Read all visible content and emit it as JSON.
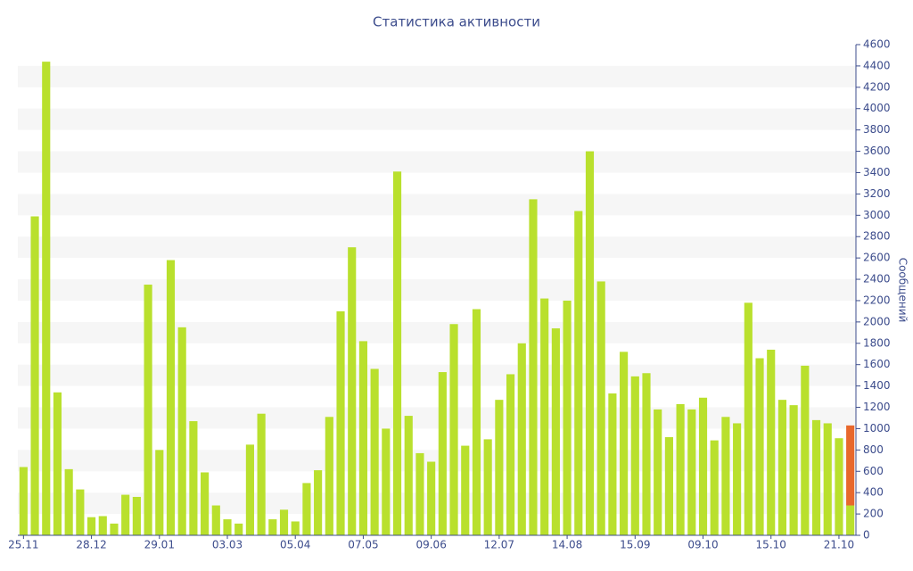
{
  "chart_data": {
    "type": "bar",
    "stacked": true,
    "title": "Статистика активности",
    "y_label": "Сообщений",
    "categories": [
      "25.11",
      null,
      null,
      null,
      null,
      null,
      "28.12",
      null,
      null,
      null,
      null,
      null,
      "29.01",
      null,
      null,
      null,
      null,
      null,
      "03.03",
      null,
      null,
      null,
      null,
      null,
      "05.04",
      null,
      null,
      null,
      null,
      null,
      "07.05",
      null,
      null,
      null,
      null,
      null,
      "09.06",
      null,
      null,
      null,
      null,
      null,
      "12.07",
      null,
      null,
      null,
      null,
      null,
      "14.08",
      null,
      null,
      null,
      null,
      null,
      "15.09",
      null,
      null,
      null,
      null,
      null,
      "09.10",
      null,
      null,
      null,
      null,
      null,
      "15.10",
      null,
      null,
      null,
      null,
      null,
      "21.10",
      null
    ],
    "series": [
      {
        "color": "#b9e02d",
        "values": [
          640,
          2990,
          4440,
          1340,
          620,
          430,
          170,
          180,
          110,
          380,
          360,
          2350,
          800,
          2580,
          1950,
          1070,
          590,
          280,
          150,
          110,
          850,
          1140,
          150,
          240,
          130,
          490,
          610,
          1110,
          2100,
          2700,
          1820,
          1560,
          1000,
          3410,
          1120,
          770,
          690,
          1530,
          1980,
          840,
          2120,
          900,
          1270,
          1510,
          1800,
          3150,
          2220,
          1940,
          2200,
          3040,
          3600,
          2380,
          1330,
          1720,
          1490,
          1520,
          1180,
          920,
          1230,
          1180,
          1290,
          890,
          1110,
          1050,
          2180,
          1660,
          1740,
          1270,
          1220,
          1590,
          1080,
          1050,
          910,
          280
        ]
      },
      {
        "color": "#e8682c",
        "values": [
          null,
          null,
          null,
          null,
          null,
          null,
          null,
          null,
          null,
          null,
          null,
          null,
          null,
          null,
          null,
          null,
          null,
          null,
          null,
          null,
          null,
          null,
          null,
          null,
          null,
          null,
          null,
          null,
          null,
          null,
          null,
          null,
          null,
          null,
          null,
          null,
          null,
          null,
          null,
          null,
          null,
          null,
          null,
          null,
          null,
          null,
          null,
          null,
          null,
          null,
          null,
          null,
          null,
          null,
          null,
          null,
          null,
          null,
          null,
          null,
          null,
          null,
          null,
          null,
          null,
          null,
          null,
          null,
          null,
          null,
          null,
          null,
          null,
          750
        ]
      }
    ],
    "ylim": [
      0,
      4600
    ],
    "yticks": [
      0,
      200,
      400,
      600,
      800,
      1000,
      1200,
      1400,
      1600,
      1800,
      2000,
      2200,
      2400,
      2600,
      2800,
      3000,
      3200,
      3400,
      3600,
      3800,
      4000,
      4200,
      4400,
      4600
    ],
    "y_axis_side": "right",
    "grid": "bands"
  }
}
